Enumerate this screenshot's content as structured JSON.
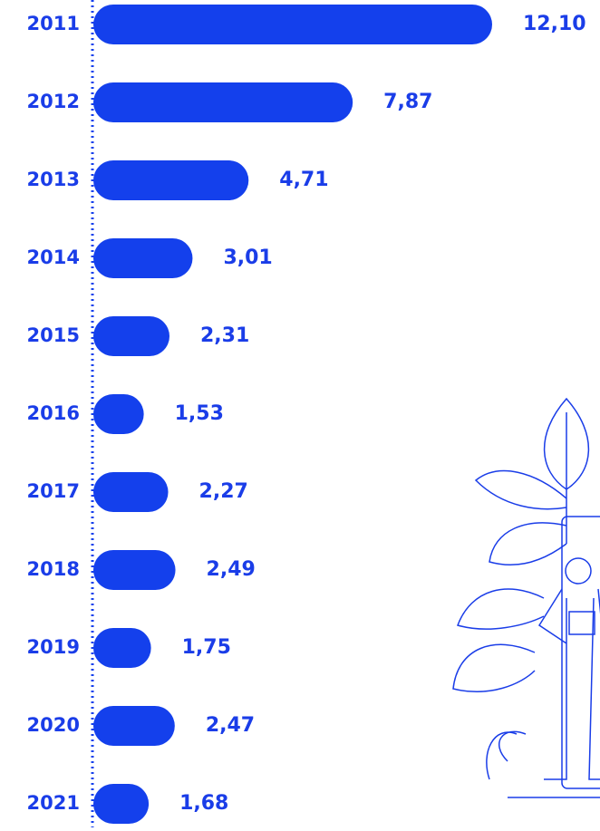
{
  "chart_data": {
    "type": "bar",
    "orientation": "horizontal",
    "categories": [
      "2011",
      "2012",
      "2013",
      "2014",
      "2015",
      "2016",
      "2017",
      "2018",
      "2019",
      "2020",
      "2021"
    ],
    "values": [
      12.1,
      7.87,
      4.71,
      3.01,
      2.31,
      1.53,
      2.27,
      2.49,
      1.75,
      2.47,
      1.68
    ],
    "value_labels": [
      "12,10",
      "7,87",
      "4,71",
      "3,01",
      "2,31",
      "1,53",
      "2,27",
      "2,49",
      "1,75",
      "2,47",
      "1,68"
    ],
    "color": "#1440ec"
  }
}
